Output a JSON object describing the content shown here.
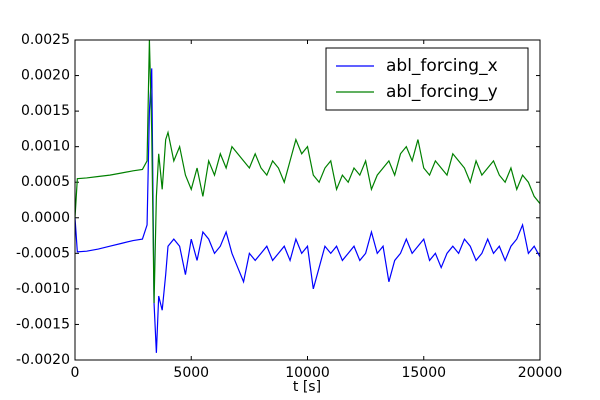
{
  "chart_data": {
    "type": "line",
    "x_label": "t [s]",
    "x": [
      0,
      100,
      500,
      1000,
      1500,
      2000,
      2500,
      2900,
      3100,
      3200,
      3300,
      3400,
      3500,
      3600,
      3750,
      3900,
      4000,
      4250,
      4500,
      4750,
      5000,
      5250,
      5500,
      5750,
      6000,
      6250,
      6500,
      6750,
      7000,
      7250,
      7500,
      7750,
      8000,
      8250,
      8500,
      8750,
      9000,
      9250,
      9500,
      9750,
      10000,
      10250,
      10500,
      10750,
      11000,
      11250,
      11500,
      11750,
      12000,
      12250,
      12500,
      12750,
      13000,
      13250,
      13500,
      13750,
      14000,
      14250,
      14500,
      14750,
      15000,
      15250,
      15500,
      15750,
      16000,
      16250,
      16500,
      16750,
      17000,
      17250,
      17500,
      17750,
      18000,
      18250,
      18500,
      18750,
      19000,
      19250,
      19500,
      19750,
      20000
    ],
    "series": [
      {
        "name": "abl_forcing_x",
        "color": "#0000ff",
        "values": [
          0,
          -0.00048,
          -0.00047,
          -0.00044,
          -0.0004,
          -0.00036,
          -0.00032,
          -0.0003,
          -0.0001,
          0.0015,
          0.0021,
          -0.0012,
          -0.0019,
          -0.0011,
          -0.0013,
          -0.0008,
          -0.0004,
          -0.0003,
          -0.0004,
          -0.0008,
          -0.0003,
          -0.0006,
          -0.0002,
          -0.0003,
          -0.0005,
          -0.0004,
          -0.0002,
          -0.0005,
          -0.0007,
          -0.0009,
          -0.0005,
          -0.0006,
          -0.0005,
          -0.0004,
          -0.0006,
          -0.0005,
          -0.0004,
          -0.0006,
          -0.0003,
          -0.0005,
          -0.0004,
          -0.001,
          -0.0007,
          -0.0004,
          -0.0005,
          -0.0004,
          -0.0006,
          -0.0005,
          -0.0004,
          -0.0006,
          -0.0005,
          -0.0002,
          -0.0005,
          -0.0004,
          -0.0009,
          -0.0006,
          -0.0005,
          -0.0003,
          -0.0005,
          -0.0004,
          -0.0003,
          -0.0006,
          -0.0005,
          -0.0007,
          -0.0005,
          -0.0004,
          -0.0005,
          -0.0003,
          -0.0004,
          -0.0006,
          -0.0005,
          -0.0003,
          -0.0005,
          -0.0004,
          -0.0006,
          -0.0004,
          -0.0003,
          -0.0001,
          -0.0005,
          -0.0004,
          -0.00055
        ]
      },
      {
        "name": "abl_forcing_y",
        "color": "#008000",
        "values": [
          0,
          0.00055,
          0.00056,
          0.00058,
          0.0006,
          0.00063,
          0.00066,
          0.00068,
          0.0008,
          0.0025,
          0.0012,
          -0.0012,
          0.0003,
          0.0009,
          0.0004,
          0.0011,
          0.0012,
          0.0008,
          0.001,
          0.0006,
          0.0004,
          0.0007,
          0.0003,
          0.0008,
          0.0006,
          0.0009,
          0.0007,
          0.001,
          0.0009,
          0.0008,
          0.0007,
          0.0009,
          0.0007,
          0.0006,
          0.0008,
          0.0007,
          0.0005,
          0.0008,
          0.0011,
          0.0009,
          0.001,
          0.0006,
          0.0005,
          0.0007,
          0.0008,
          0.0004,
          0.0006,
          0.0005,
          0.0007,
          0.0006,
          0.0008,
          0.0004,
          0.0006,
          0.0007,
          0.0008,
          0.0006,
          0.0009,
          0.001,
          0.0008,
          0.0011,
          0.0007,
          0.0006,
          0.0008,
          0.0007,
          0.0006,
          0.0009,
          0.0008,
          0.0007,
          0.0005,
          0.0008,
          0.0006,
          0.0007,
          0.0008,
          0.0006,
          0.0005,
          0.0007,
          0.0004,
          0.0006,
          0.0005,
          0.0003,
          0.0002
        ]
      }
    ],
    "xlim": [
      0,
      20000
    ],
    "xticks": [
      0,
      5000,
      10000,
      15000,
      20000
    ],
    "ylim": [
      -0.002,
      0.0025
    ],
    "yticks": [
      {
        "value": -0.002,
        "label": "-0.0020"
      },
      {
        "value": -0.0015,
        "label": "-0.0015"
      },
      {
        "value": -0.001,
        "label": "-0.0010"
      },
      {
        "value": -0.0005,
        "label": "-0.0005"
      },
      {
        "value": 0,
        "label": "0.0000"
      },
      {
        "value": 0.0005,
        "label": "0.0005"
      },
      {
        "value": 0.001,
        "label": "0.0010"
      },
      {
        "value": 0.0015,
        "label": "0.0015"
      },
      {
        "value": 0.002,
        "label": "0.0020"
      },
      {
        "value": 0.0025,
        "label": "0.0025"
      }
    ],
    "legend": "upper right"
  }
}
